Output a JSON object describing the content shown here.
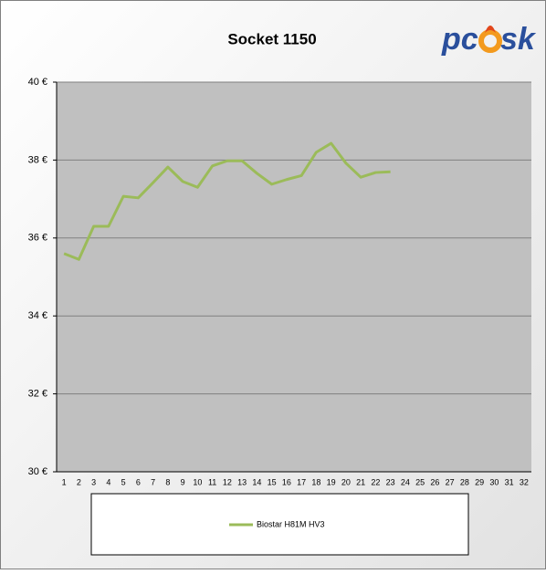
{
  "chart_data": {
    "type": "line",
    "title": "Socket 1150",
    "logo": {
      "left": "pc",
      "right": "sk"
    },
    "categories": [
      "1",
      "2",
      "3",
      "4",
      "5",
      "6",
      "7",
      "8",
      "9",
      "10",
      "11",
      "12",
      "13",
      "14",
      "15",
      "16",
      "17",
      "18",
      "19",
      "20",
      "21",
      "22",
      "23",
      "24",
      "25",
      "26",
      "27",
      "28",
      "29",
      "30",
      "31",
      "32"
    ],
    "series": [
      {
        "name": "Biostar H81M HV3",
        "color": "#9bbb59",
        "values": [
          35.6,
          35.45,
          36.3,
          36.3,
          37.07,
          37.03,
          37.42,
          37.82,
          37.45,
          37.3,
          37.85,
          37.98,
          37.98,
          37.66,
          37.38,
          37.5,
          37.6,
          38.2,
          38.43,
          37.92,
          37.56,
          37.68,
          37.7,
          null,
          null,
          null,
          null,
          null,
          null,
          null,
          null,
          null
        ]
      }
    ],
    "ylim": [
      30,
      40
    ],
    "yticks": [
      {
        "value": 30,
        "label": "30 €"
      },
      {
        "value": 32,
        "label": "32 €"
      },
      {
        "value": 34,
        "label": "34 €"
      },
      {
        "value": 36,
        "label": "36 €"
      },
      {
        "value": 38,
        "label": "38 €"
      },
      {
        "value": 40,
        "label": "40 €"
      }
    ],
    "grid": true,
    "legend": "bottom"
  }
}
